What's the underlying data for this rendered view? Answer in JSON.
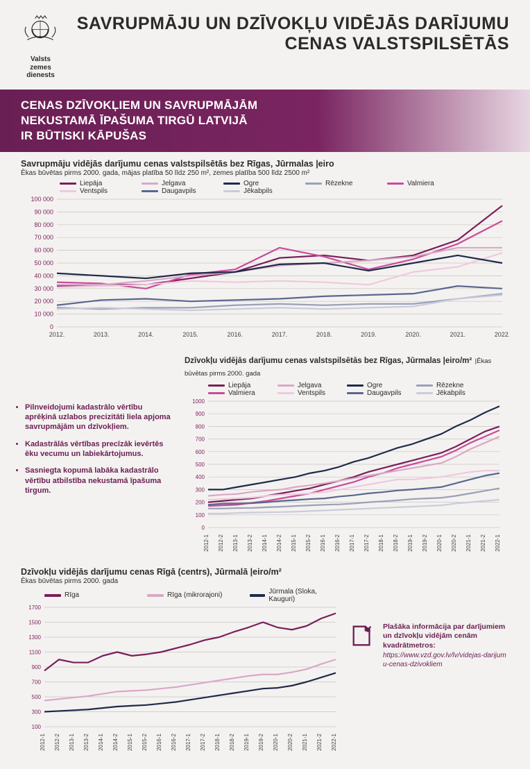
{
  "logo_label": "Valsts zemes\ndienests",
  "main_title": "SAVRUPMĀJU UN DZĪVOKĻU VIDĒJĀS DARĪJUMU CENAS VALSTSPILSĒTĀS",
  "banner": "CENAS DZĪVOKĻIEM UN SAVRUPMĀJĀM\nNEKUSTAMĀ ĪPAŠUMA TIRGŪ LATVIJĀ\nIR BŪTISKI KĀPUŠAS",
  "palette": {
    "liepaja": "#7a1f5a",
    "valmiera": "#c94b9b",
    "jelgava": "#d9a8c7",
    "ventspils": "#eec9df",
    "ogre": "#1f2a4a",
    "daugavpils": "#5a6690",
    "rezekne": "#9aa0b8",
    "jekabpils": "#c9ccd9",
    "riga_centre": "#7a1f5a",
    "riga_micro": "#d9a8c7",
    "jurmala": "#1f2a4a",
    "grid": "#c8c4bf",
    "axis": "#444444",
    "bg": "#f4f2f0"
  },
  "chart1": {
    "type": "line",
    "title": "Savrupmāju vidējās darījumu cenas valstspilsētās bez Rīgas, Jūrmalas |eiro",
    "subtitle": "Ēkas būvētas pirms 2000. gada, mājas platība 50 līdz 250 m², zemes platība 500 līdz 2500 m²",
    "x_labels": [
      "2012.",
      "2013.",
      "2014.",
      "2015.",
      "2016.",
      "2017.",
      "2018.",
      "2019.",
      "2020.",
      "2021.",
      "2022."
    ],
    "ylim": [
      0,
      100000
    ],
    "ytick_step": 10000,
    "legend": [
      {
        "key": "liepaja",
        "label": "Liepāja"
      },
      {
        "key": "jelgava",
        "label": "Jelgava"
      },
      {
        "key": "ogre",
        "label": "Ogre"
      },
      {
        "key": "rezekne",
        "label": "Rēzekne"
      },
      {
        "key": "valmiera",
        "label": "Valmiera"
      },
      {
        "key": "ventspils",
        "label": "Ventspils"
      },
      {
        "key": "daugavpils",
        "label": "Daugavpils"
      },
      {
        "key": "jekabpils",
        "label": "Jēkabpils"
      }
    ],
    "series": {
      "liepaja": [
        32000,
        33000,
        33000,
        38000,
        43000,
        54000,
        56000,
        52000,
        56000,
        68000,
        95000
      ],
      "valmiera": [
        35000,
        34000,
        30000,
        41000,
        45000,
        62000,
        55000,
        45000,
        53000,
        65000,
        83000
      ],
      "jelgava": [
        33000,
        33000,
        36000,
        40000,
        43000,
        48000,
        50000,
        52000,
        55000,
        62000,
        62000
      ],
      "ventspils": [
        31000,
        32000,
        33000,
        36000,
        35000,
        36000,
        35000,
        33000,
        43000,
        47000,
        58000
      ],
      "ogre": [
        42000,
        40000,
        38000,
        42000,
        43000,
        49000,
        50000,
        44000,
        50000,
        56000,
        50000
      ],
      "daugavpils": [
        17000,
        21000,
        22000,
        20000,
        21000,
        22000,
        24000,
        25000,
        26000,
        32000,
        30000
      ],
      "rezekne": [
        15000,
        14000,
        15000,
        15000,
        17000,
        18000,
        17000,
        18000,
        18000,
        22000,
        26000
      ],
      "jekabpils": [
        14000,
        15000,
        14000,
        13000,
        14000,
        15000,
        14000,
        15000,
        16000,
        22000,
        25000
      ]
    }
  },
  "chart2": {
    "type": "line",
    "title": "Dzīvokļu vidējās darījumu cenas valstspilsētās bez Rīgas, Jūrmalas |eiro/m²",
    "subtitle": " |Ēkas būvētas pirms 2000. gada",
    "x_labels": [
      "2012-1",
      "2012-2",
      "2013-1",
      "2013-2",
      "2014-1",
      "2014-2",
      "2015-1",
      "2015-2",
      "2016-1",
      "2016-2",
      "2017-1",
      "2017-2",
      "2018-1",
      "2018-2",
      "2019-1",
      "2019-2",
      "2020-1",
      "2020-2",
      "2021-1",
      "2021-2",
      "2022-1"
    ],
    "ylim": [
      0,
      1000
    ],
    "ytick_step": 100,
    "legend": [
      {
        "key": "liepaja",
        "label": "Liepāja"
      },
      {
        "key": "jelgava",
        "label": "Jelgava"
      },
      {
        "key": "ogre",
        "label": "Ogre"
      },
      {
        "key": "rezekne",
        "label": "Rēzekne"
      },
      {
        "key": "valmiera",
        "label": "Valmiera"
      },
      {
        "key": "ventspils",
        "label": "Ventspils"
      },
      {
        "key": "daugavpils",
        "label": "Daugavpils"
      },
      {
        "key": "jekabpils",
        "label": "Jēkabpils"
      }
    ],
    "series": {
      "ogre": [
        300,
        300,
        320,
        340,
        360,
        380,
        400,
        430,
        450,
        480,
        520,
        550,
        590,
        630,
        660,
        700,
        740,
        800,
        850,
        910,
        960
      ],
      "liepaja": [
        200,
        210,
        220,
        230,
        250,
        270,
        290,
        310,
        340,
        370,
        400,
        440,
        470,
        500,
        530,
        560,
        590,
        640,
        700,
        760,
        800
      ],
      "valmiera": [
        170,
        175,
        180,
        195,
        210,
        230,
        250,
        270,
        300,
        330,
        360,
        400,
        430,
        470,
        500,
        530,
        560,
        610,
        670,
        720,
        770
      ],
      "jelgava": [
        250,
        260,
        265,
        282,
        292,
        300,
        320,
        334,
        350,
        370,
        390,
        410,
        430,
        450,
        470,
        490,
        510,
        560,
        620,
        670,
        720
      ],
      "ventspils": [
        220,
        225,
        230,
        237,
        250,
        260,
        263,
        270,
        280,
        300,
        320,
        340,
        360,
        380,
        380,
        390,
        400,
        420,
        440,
        450,
        450
      ],
      "daugavpils": [
        180,
        189,
        190,
        192,
        200,
        210,
        217,
        225,
        230,
        245,
        255,
        270,
        280,
        293,
        300,
        310,
        320,
        350,
        380,
        410,
        430
      ],
      "rezekne": [
        150,
        150,
        154,
        155,
        160,
        164,
        170,
        175,
        180,
        183,
        190,
        200,
        207,
        215,
        225,
        230,
        235,
        250,
        270,
        290,
        310
      ],
      "jekabpils": [
        110,
        110,
        115,
        118,
        120,
        122,
        125,
        130,
        135,
        140,
        145,
        150,
        155,
        160,
        165,
        170,
        175,
        190,
        200,
        210,
        220
      ]
    }
  },
  "chart3": {
    "type": "line",
    "title": "Dzīvokļu vidējās darījumu cenas Rīgā (centrs), Jūrmalā |eiro/m²",
    "subtitle": "Ēkas būvētas pirms 2000. gada",
    "x_labels": [
      "2012-1",
      "2012-2",
      "2013-1",
      "2013-2",
      "2014-1",
      "2014-2",
      "2015-1",
      "2015-2",
      "2016-1",
      "2016-2",
      "2017-1",
      "2017-2",
      "2018-1",
      "2018-2",
      "2019-1",
      "2019-2",
      "2020-1",
      "2020-2",
      "2021-1",
      "2021-2",
      "2022-1"
    ],
    "ylim": [
      100,
      1700
    ],
    "ytick_step": 200,
    "legend": [
      {
        "key": "riga_centre",
        "label": "Rīga"
      },
      {
        "key": "riga_micro",
        "label": "Rīga (mikrorajoni)"
      },
      {
        "key": "jurmala",
        "label": "Jūrmala (Sloka, Kauguri)"
      }
    ],
    "series": {
      "riga_centre": [
        850,
        1000,
        960,
        960,
        1050,
        1100,
        1050,
        1070,
        1100,
        1150,
        1200,
        1260,
        1300,
        1370,
        1430,
        1500,
        1430,
        1400,
        1450,
        1550,
        1620
      ],
      "riga_micro": [
        450,
        470,
        490,
        510,
        540,
        570,
        580,
        590,
        610,
        630,
        660,
        690,
        720,
        750,
        780,
        800,
        800,
        830,
        870,
        940,
        1000
      ],
      "jurmala": [
        300,
        310,
        320,
        330,
        350,
        370,
        380,
        390,
        410,
        430,
        460,
        490,
        520,
        550,
        580,
        610,
        620,
        650,
        700,
        760,
        820
      ]
    }
  },
  "bullets": [
    "Pilnveidojumi kadastrālo vērtību aprēķinā uzlabos precizitāti liela apjoma savrupmājām un dzīvokļiem.",
    "Kadastrālās vērtības precīzāk ievērtēs ēku vecumu un labiekārtojumus.",
    "Sasniegta kopumā labāka kadastrālo vērtību atbilstība nekustamā īpašuma tirgum."
  ],
  "info": {
    "bold": "Plašāka informācija par darījumiem un dzīvokļu vidējām cenām kvadrātmetros:",
    "url": "https://www.vzd.gov.lv/lv/videjas-darijumu-cenas-dzivokliem"
  },
  "style": {
    "title_fontsize": 25,
    "banner_fontsize": 17,
    "chart_title_fontsize": 12.5,
    "axis_fontsize": 9,
    "line_width": 2.2
  }
}
